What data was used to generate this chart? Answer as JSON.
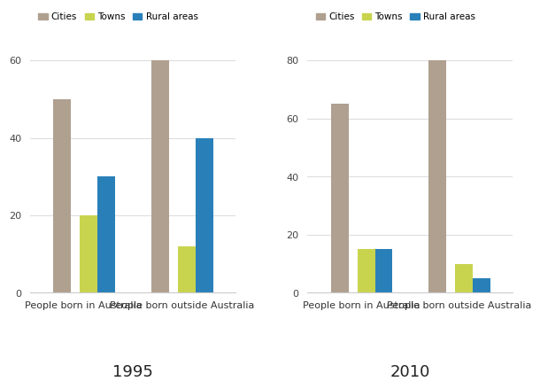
{
  "chart1995": {
    "title": "1995",
    "categories": [
      "People born in Australia",
      "People born outside Australia"
    ],
    "cities": [
      50,
      60
    ],
    "towns": [
      20,
      12
    ],
    "rural": [
      30,
      40
    ],
    "ylim": [
      0,
      66
    ],
    "yticks": [
      0,
      20,
      40,
      60
    ]
  },
  "chart2010": {
    "title": "2010",
    "categories": [
      "People born in Australia",
      "People born outside Australia"
    ],
    "cities": [
      65,
      80
    ],
    "towns": [
      15,
      10
    ],
    "rural": [
      15,
      5
    ],
    "ylim": [
      0,
      88
    ],
    "yticks": [
      0,
      20,
      40,
      60,
      80
    ]
  },
  "colors": {
    "cities": "#b0a090",
    "towns": "#c8d44e",
    "rural": "#2980b9"
  },
  "legend_labels": [
    "Cities",
    "Towns",
    "Rural areas"
  ],
  "bg_color": "#ffffff",
  "title_fontsize": 13,
  "tick_fontsize": 8,
  "xlabel_fontsize": 8
}
